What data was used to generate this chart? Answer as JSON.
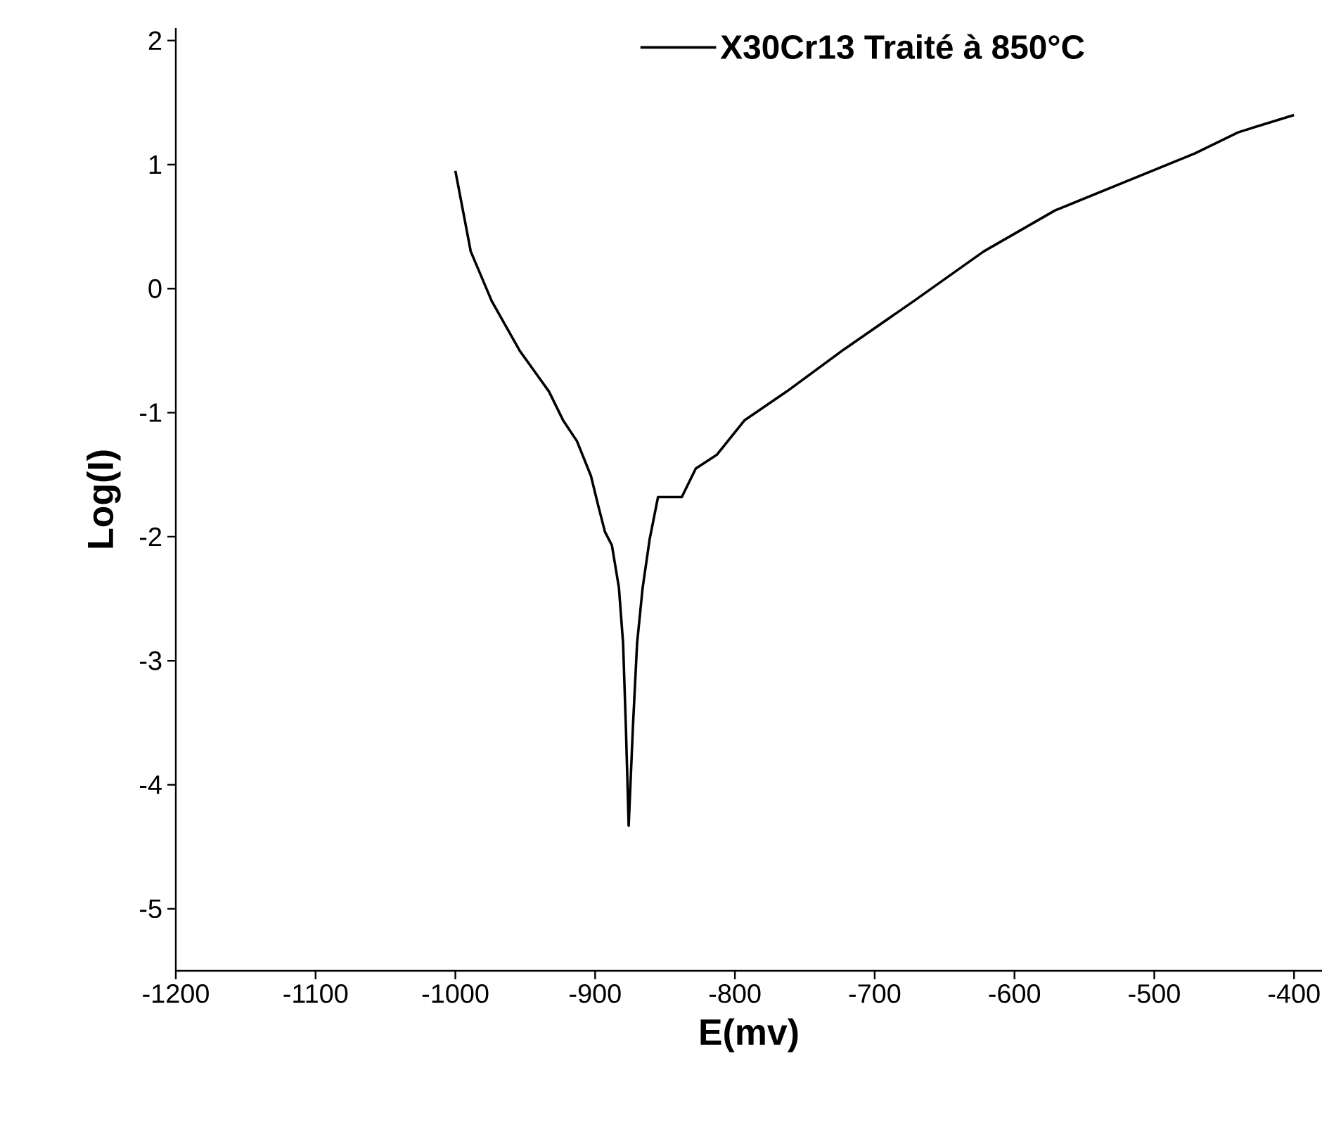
{
  "chart_data": {
    "type": "line",
    "xlabel": "E(mv)",
    "ylabel": "Log(I)",
    "series": [
      {
        "name": "X30Cr13 Traité à 850°C",
        "color": "#000000",
        "x": [
          -1000,
          -989,
          -974,
          -954,
          -933,
          -923,
          -913,
          -903,
          -898,
          -893,
          -888,
          -883,
          -880,
          -878,
          -876,
          -873,
          -870,
          -866,
          -861,
          -855,
          -838,
          -828,
          -813,
          -793,
          -763,
          -722,
          -672,
          -622,
          -571,
          -521,
          -471,
          -440,
          -400
        ],
        "values": [
          0.95,
          0.3,
          -0.1,
          -0.5,
          -0.83,
          -1.06,
          -1.23,
          -1.51,
          -1.74,
          -1.96,
          -2.07,
          -2.41,
          -2.86,
          -3.54,
          -4.33,
          -3.54,
          -2.86,
          -2.41,
          -2.02,
          -1.68,
          -1.68,
          -1.45,
          -1.34,
          -1.06,
          -0.83,
          -0.49,
          -0.1,
          0.3,
          0.63,
          0.86,
          1.09,
          1.26,
          1.4
        ]
      }
    ],
    "xlim": [
      -1200,
      -380
    ],
    "ylim": [
      -5.5,
      2.1
    ],
    "xticks": [
      -1200,
      -1100,
      -1000,
      -900,
      -800,
      -700,
      -600,
      -500,
      -400
    ],
    "yticks": [
      -5,
      -4,
      -3,
      -2,
      -1,
      0,
      1,
      2
    ],
    "legend": "top",
    "line_style": "solid"
  }
}
